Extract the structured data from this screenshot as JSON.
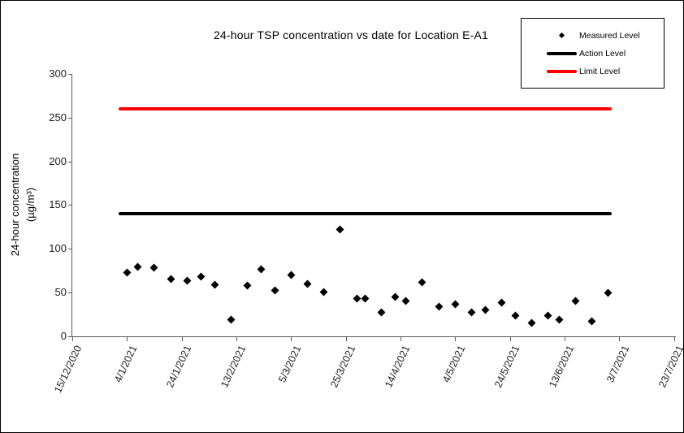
{
  "chart_data": {
    "type": "scatter",
    "title": "24-hour TSP concentration vs date for Location E-A1",
    "xlabel": "",
    "ylabel": "24-hour concentration (µg/m³)",
    "ylabel_lines": [
      "24-hour concentration",
      "(µg/m³)"
    ],
    "ylim": [
      0,
      300
    ],
    "ytick_step": 50,
    "ytick_labels": [
      "0",
      "50",
      "100",
      "150",
      "200",
      "250",
      "300"
    ],
    "xtick_labels": [
      "15/12/2020",
      "4/1/2021",
      "24/1/2021",
      "13/2/2021",
      "5/3/2021",
      "25/3/2021",
      "14/4/2021",
      "4/5/2021",
      "24/5/2021",
      "13/6/2021",
      "3/7/2021",
      "23/7/2021"
    ],
    "grid": false,
    "legend_position": "top-right",
    "series": [
      {
        "name": "Measured Level",
        "kind": "scatter",
        "marker": "diamond",
        "color": "#000000",
        "x": [
          "4/1/2021",
          "8/1/2021",
          "14/1/2021",
          "20/1/2021",
          "26/1/2021",
          "31/1/2021",
          "5/2/2021",
          "11/2/2021",
          "17/2/2021",
          "22/2/2021",
          "27/2/2021",
          "5/3/2021",
          "11/3/2021",
          "17/3/2021",
          "23/3/2021",
          "29/3/2021",
          "1/4/2021",
          "7/4/2021",
          "12/4/2021",
          "16/4/2021",
          "22/4/2021",
          "28/4/2021",
          "4/5/2021",
          "10/5/2021",
          "15/5/2021",
          "21/5/2021",
          "26/5/2021",
          "1/6/2021",
          "7/6/2021",
          "11/6/2021",
          "17/6/2021",
          "23/6/2021",
          "29/6/2021"
        ],
        "y": [
          73,
          79,
          78,
          65,
          63,
          68,
          59,
          19,
          58,
          76,
          52,
          70,
          60,
          50,
          122,
          43,
          43,
          27,
          45,
          40,
          62,
          34,
          36,
          27,
          30,
          38,
          23,
          15,
          23,
          19,
          40,
          17,
          49
        ]
      },
      {
        "name": "Action Level",
        "kind": "hline",
        "color": "#000000",
        "value": 140
      },
      {
        "name": "Limit Level",
        "kind": "hline",
        "color": "#ff0000",
        "value": 260
      }
    ]
  }
}
